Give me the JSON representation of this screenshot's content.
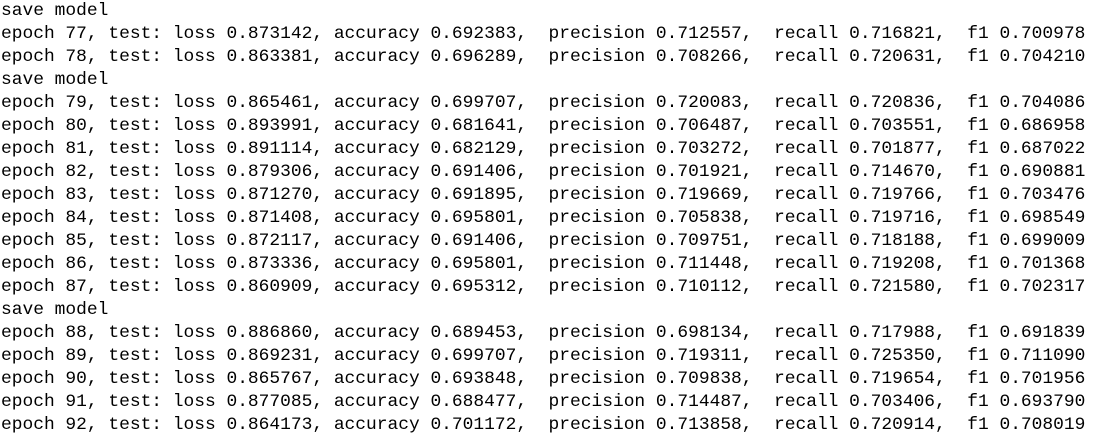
{
  "lines": [
    "save model",
    "epoch 77, test: loss 0.873142, accuracy 0.692383,  precision 0.712557,  recall 0.716821,  f1 0.700978",
    "epoch 78, test: loss 0.863381, accuracy 0.696289,  precision 0.708266,  recall 0.720631,  f1 0.704210",
    "save model",
    "epoch 79, test: loss 0.865461, accuracy 0.699707,  precision 0.720083,  recall 0.720836,  f1 0.704086",
    "epoch 80, test: loss 0.893991, accuracy 0.681641,  precision 0.706487,  recall 0.703551,  f1 0.686958",
    "epoch 81, test: loss 0.891114, accuracy 0.682129,  precision 0.703272,  recall 0.701877,  f1 0.687022",
    "epoch 82, test: loss 0.879306, accuracy 0.691406,  precision 0.701921,  recall 0.714670,  f1 0.690881",
    "epoch 83, test: loss 0.871270, accuracy 0.691895,  precision 0.719669,  recall 0.719766,  f1 0.703476",
    "epoch 84, test: loss 0.871408, accuracy 0.695801,  precision 0.705838,  recall 0.719716,  f1 0.698549",
    "epoch 85, test: loss 0.872117, accuracy 0.691406,  precision 0.709751,  recall 0.718188,  f1 0.699009",
    "epoch 86, test: loss 0.873336, accuracy 0.695801,  precision 0.711448,  recall 0.719208,  f1 0.701368",
    "epoch 87, test: loss 0.860909, accuracy 0.695312,  precision 0.710112,  recall 0.721580,  f1 0.702317",
    "save model",
    "epoch 88, test: loss 0.886860, accuracy 0.689453,  precision 0.698134,  recall 0.717988,  f1 0.691839",
    "epoch 89, test: loss 0.869231, accuracy 0.699707,  precision 0.719311,  recall 0.725350,  f1 0.711090",
    "epoch 90, test: loss 0.865767, accuracy 0.693848,  precision 0.709838,  recall 0.719654,  f1 0.701956",
    "epoch 91, test: loss 0.877085, accuracy 0.688477,  precision 0.714487,  recall 0.703406,  f1 0.693790",
    "epoch 92, test: loss 0.864173, accuracy 0.701172,  precision 0.713858,  recall 0.720914,  f1 0.708019"
  ]
}
